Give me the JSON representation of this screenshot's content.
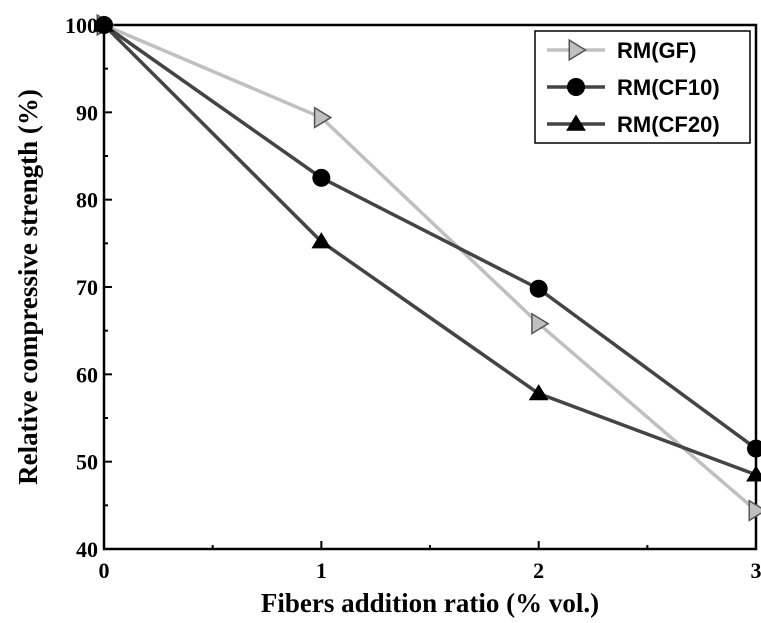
{
  "chart_data": {
    "type": "line",
    "xlabel": "Fibers addition ratio (% vol.)",
    "ylabel": "Relative compressive strength (%)",
    "xlim": [
      0,
      3
    ],
    "ylim": [
      40,
      100
    ],
    "x_ticks": [
      0,
      1,
      2,
      3
    ],
    "y_ticks": [
      40,
      50,
      60,
      70,
      80,
      90,
      100
    ],
    "grid": false,
    "legend_position": "top-right",
    "series": [
      {
        "name": "RM(GF)",
        "x": [
          0,
          1,
          2,
          3
        ],
        "y": [
          100,
          89.4,
          65.8,
          44.4
        ],
        "marker": "triangle-right",
        "color": "#c0c0c0",
        "marker_color": "#c0c0c0"
      },
      {
        "name": "RM(CF10)",
        "x": [
          0,
          1,
          2,
          3
        ],
        "y": [
          100,
          82.5,
          69.8,
          51.5
        ],
        "marker": "circle",
        "color": "#444444",
        "marker_color": "#000000"
      },
      {
        "name": "RM(CF20)",
        "x": [
          0,
          1,
          2,
          3
        ],
        "y": [
          100,
          75.2,
          57.8,
          48.5
        ],
        "marker": "triangle-up",
        "color": "#444444",
        "marker_color": "#000000"
      }
    ]
  }
}
